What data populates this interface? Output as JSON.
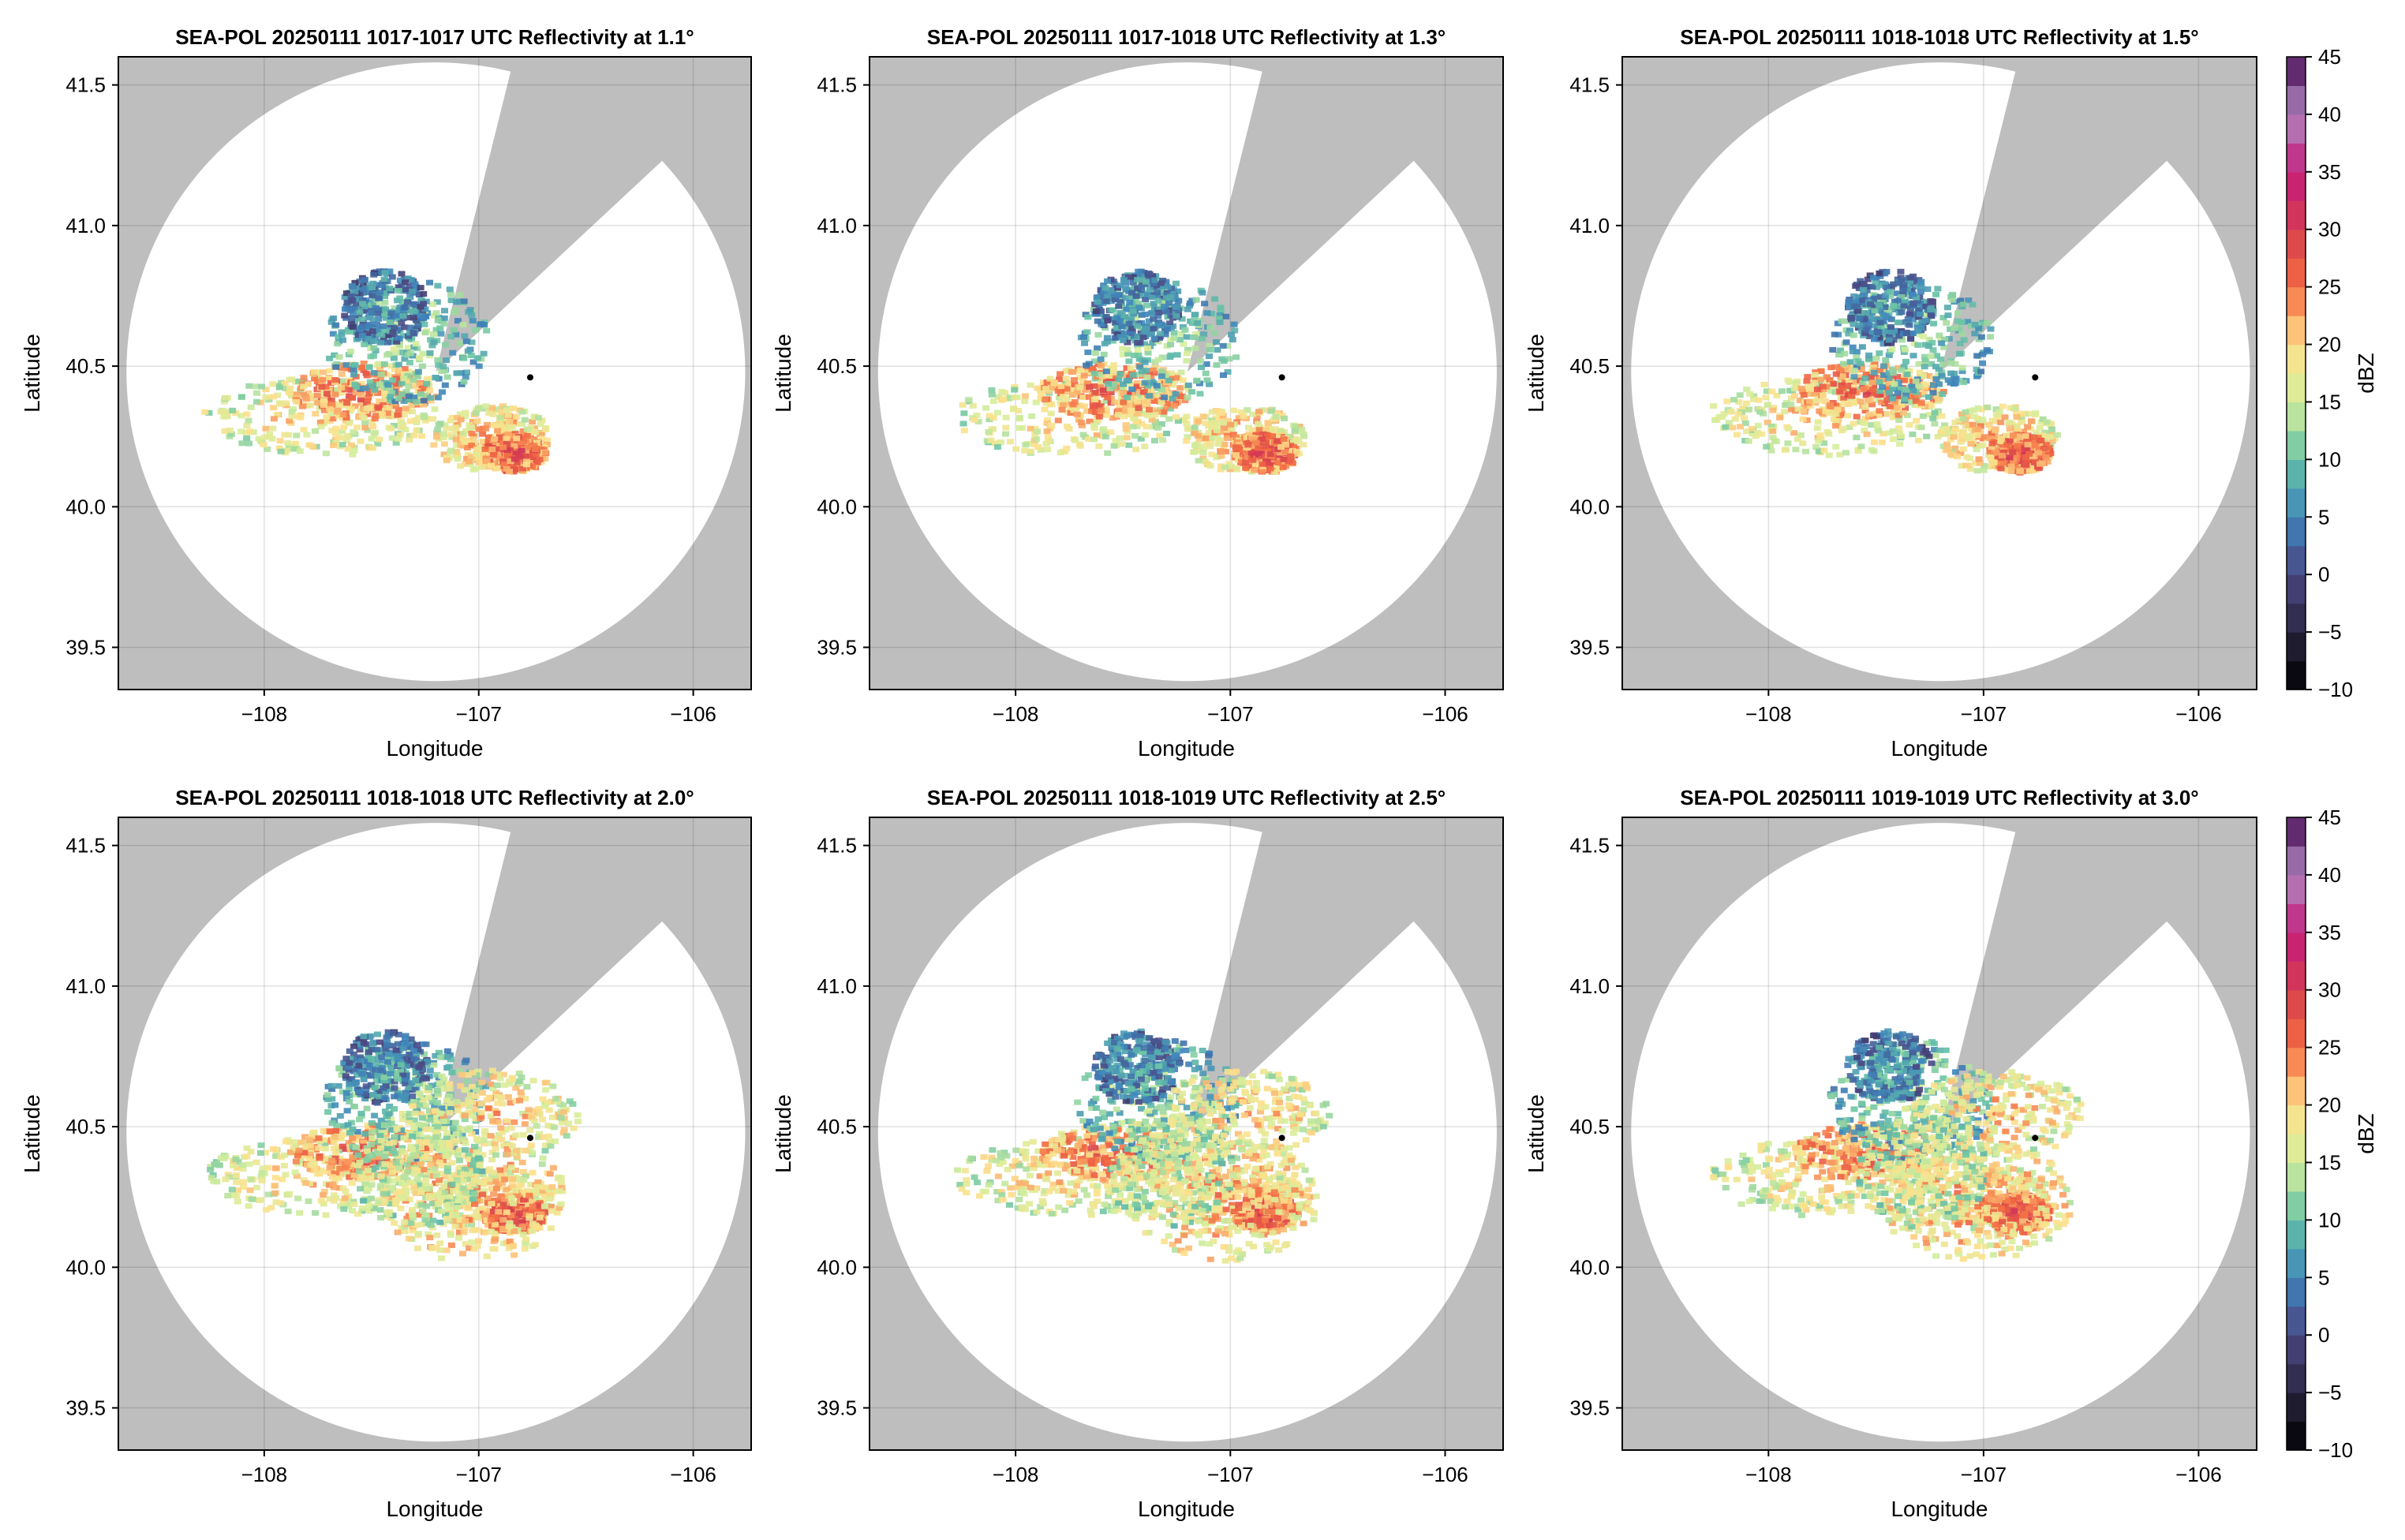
{
  "figure": {
    "colorbar_label": "dBZ",
    "colorbar_ticks": [
      -10,
      -5,
      0,
      5,
      10,
      15,
      20,
      25,
      30,
      35,
      40,
      45
    ],
    "colorbar_stops": [
      {
        "v": -10,
        "c": "#000000"
      },
      {
        "v": -5,
        "c": "#2a2540"
      },
      {
        "v": 0,
        "c": "#4b4783"
      },
      {
        "v": 5,
        "c": "#3e86bc"
      },
      {
        "v": 10,
        "c": "#66c2a5"
      },
      {
        "v": 15,
        "c": "#d5ee9b"
      },
      {
        "v": 20,
        "c": "#fee08b"
      },
      {
        "v": 25,
        "c": "#f46d43"
      },
      {
        "v": 30,
        "c": "#d53e4f"
      },
      {
        "v": 35,
        "c": "#c51b7d"
      },
      {
        "v": 40,
        "c": "#b08bc2"
      },
      {
        "v": 45,
        "c": "#4a0c55"
      }
    ],
    "background_color": "#bebebe",
    "coverage_color": "#ffffff",
    "grid": true
  },
  "chart_data": [
    {
      "type": "heatmap",
      "title": "SEA-POL 20250111 1017-1017 UTC Reflectivity at 1.1°",
      "xlabel": "Longitude",
      "ylabel": "Latitude",
      "xlim": [
        -108.68,
        -105.73
      ],
      "ylim": [
        39.35,
        41.6
      ],
      "xticks": [
        -108,
        -107,
        -106
      ],
      "xtick_labels": [
        "−108",
        "−107",
        "−106"
      ],
      "yticks": [
        39.5,
        40.0,
        40.5,
        41.0,
        41.5
      ],
      "ytick_labels": [
        "39.5",
        "40.0",
        "40.5",
        "41.0",
        "41.5"
      ],
      "radar_center": [
        -107.2,
        40.48
      ],
      "marker": [
        -106.76,
        40.46
      ],
      "max_range_lat_deg": 1.1
    },
    {
      "type": "heatmap",
      "title": "SEA-POL 20250111 1017-1018 UTC Reflectivity at 1.3°",
      "xlabel": "Longitude",
      "ylabel": "Latitude",
      "xlim": [
        -108.68,
        -105.73
      ],
      "ylim": [
        39.35,
        41.6
      ],
      "xticks": [
        -108,
        -107,
        -106
      ],
      "xtick_labels": [
        "−108",
        "−107",
        "−106"
      ],
      "yticks": [
        39.5,
        40.0,
        40.5,
        41.0,
        41.5
      ],
      "ytick_labels": [
        "39.5",
        "40.0",
        "40.5",
        "41.0",
        "41.5"
      ],
      "radar_center": [
        -107.2,
        40.48
      ],
      "marker": [
        -106.76,
        40.46
      ],
      "max_range_lat_deg": 1.1
    },
    {
      "type": "heatmap",
      "title": "SEA-POL 20250111 1018-1018 UTC Reflectivity at 1.5°",
      "xlabel": "Longitude",
      "ylabel": "Latitude",
      "xlim": [
        -108.68,
        -105.73
      ],
      "ylim": [
        39.35,
        41.6
      ],
      "xticks": [
        -108,
        -107,
        -106
      ],
      "xtick_labels": [
        "−108",
        "−107",
        "−106"
      ],
      "yticks": [
        39.5,
        40.0,
        40.5,
        41.0,
        41.5
      ],
      "ytick_labels": [
        "39.5",
        "40.0",
        "40.5",
        "41.0",
        "41.5"
      ],
      "radar_center": [
        -107.2,
        40.48
      ],
      "marker": [
        -106.76,
        40.46
      ],
      "max_range_lat_deg": 1.1
    },
    {
      "type": "heatmap",
      "title": "SEA-POL 20250111 1018-1018 UTC Reflectivity at 2.0°",
      "xlabel": "Longitude",
      "ylabel": "Latitude",
      "xlim": [
        -108.68,
        -105.73
      ],
      "ylim": [
        39.35,
        41.6
      ],
      "xticks": [
        -108,
        -107,
        -106
      ],
      "xtick_labels": [
        "−108",
        "−107",
        "−106"
      ],
      "yticks": [
        39.5,
        40.0,
        40.5,
        41.0,
        41.5
      ],
      "ytick_labels": [
        "39.5",
        "40.0",
        "40.5",
        "41.0",
        "41.5"
      ],
      "radar_center": [
        -107.2,
        40.48
      ],
      "marker": [
        -106.76,
        40.46
      ],
      "max_range_lat_deg": 1.1
    },
    {
      "type": "heatmap",
      "title": "SEA-POL 20250111 1018-1019 UTC Reflectivity at 2.5°",
      "xlabel": "Longitude",
      "ylabel": "Latitude",
      "xlim": [
        -108.68,
        -105.73
      ],
      "ylim": [
        39.35,
        41.6
      ],
      "xticks": [
        -108,
        -107,
        -106
      ],
      "xtick_labels": [
        "−108",
        "−107",
        "−106"
      ],
      "yticks": [
        39.5,
        40.0,
        40.5,
        41.0,
        41.5
      ],
      "ytick_labels": [
        "39.5",
        "40.0",
        "40.5",
        "41.0",
        "41.5"
      ],
      "radar_center": [
        -107.2,
        40.48
      ],
      "marker": [
        -106.76,
        40.46
      ],
      "max_range_lat_deg": 1.1
    },
    {
      "type": "heatmap",
      "title": "SEA-POL 20250111 1019-1019 UTC Reflectivity at 3.0°",
      "xlabel": "Longitude",
      "ylabel": "Latitude",
      "xlim": [
        -108.68,
        -105.73
      ],
      "ylim": [
        39.35,
        41.6
      ],
      "xticks": [
        -108,
        -107,
        -106
      ],
      "xtick_labels": [
        "−108",
        "−107",
        "−106"
      ],
      "yticks": [
        39.5,
        40.0,
        40.5,
        41.0,
        41.5
      ],
      "ytick_labels": [
        "39.5",
        "40.0",
        "40.5",
        "41.0",
        "41.5"
      ],
      "radar_center": [
        -107.2,
        40.48
      ],
      "marker": [
        -106.76,
        40.46
      ],
      "max_range_lat_deg": 1.1
    }
  ]
}
